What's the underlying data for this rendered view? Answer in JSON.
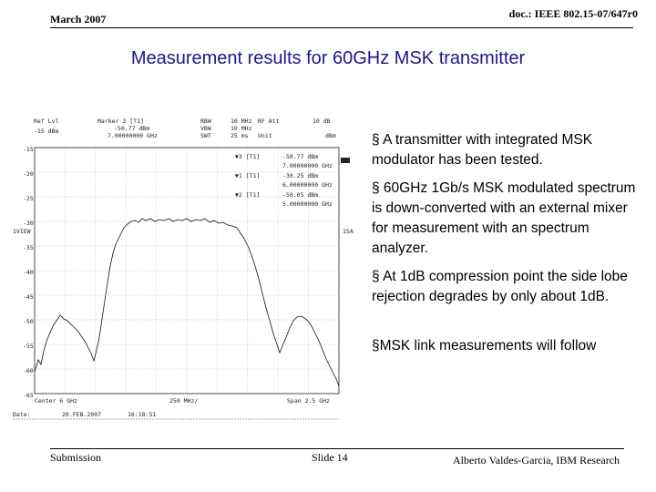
{
  "header": {
    "date": "March 2007",
    "doc": "doc.: IEEE 802.15-07/647r0"
  },
  "title": "Measurement results for 60GHz MSK transmitter",
  "bullets": [
    "§ A transmitter with integrated MSK modulator has been tested.",
    "§ 60GHz 1Gb/s MSK modulated spectrum  is down-converted with an external mixer for measurement with an spectrum analyzer.",
    "§ At 1dB compression point the side lobe rejection degrades by only about 1dB.",
    "§MSK link measurements will follow"
  ],
  "analyzer": {
    "header": [
      "Ref Lvl",
      "-15 dBm",
      "Marker 3 [T1]",
      "-50.77 dBm",
      "7.00000000 GHz",
      "RBW",
      "10 MHz",
      "RF Att",
      "10 dB",
      "VBW",
      "10 MHz",
      "SWT",
      "25 ms",
      "Unit",
      "dBm"
    ],
    "y_labels": [
      "-15",
      "-20",
      "-25",
      "-30",
      "-35",
      "-40",
      "-45",
      "-50",
      "-55",
      "-60",
      "-65"
    ],
    "markers": [
      "▼3 [T1]",
      "-50.77 dBm",
      "7.00000000 GHz",
      "▼1 [T1]",
      "-30.25 dBm",
      "6.00000000 GHz",
      "▼2 [T1]",
      "-50.05 dBm",
      "5.00000000 GHz"
    ],
    "side": [
      "1VIEW",
      "1SA"
    ],
    "footer": [
      "Center 6 GHz",
      "250 MHz/",
      "Span 2.5 GHz",
      "Date:",
      "20.FEB.2007",
      "16:18:51"
    ]
  },
  "footer": {
    "left": "Submission",
    "center": "Slide 14",
    "right": "Alberto Valdes-Garcia, IBM Research"
  }
}
